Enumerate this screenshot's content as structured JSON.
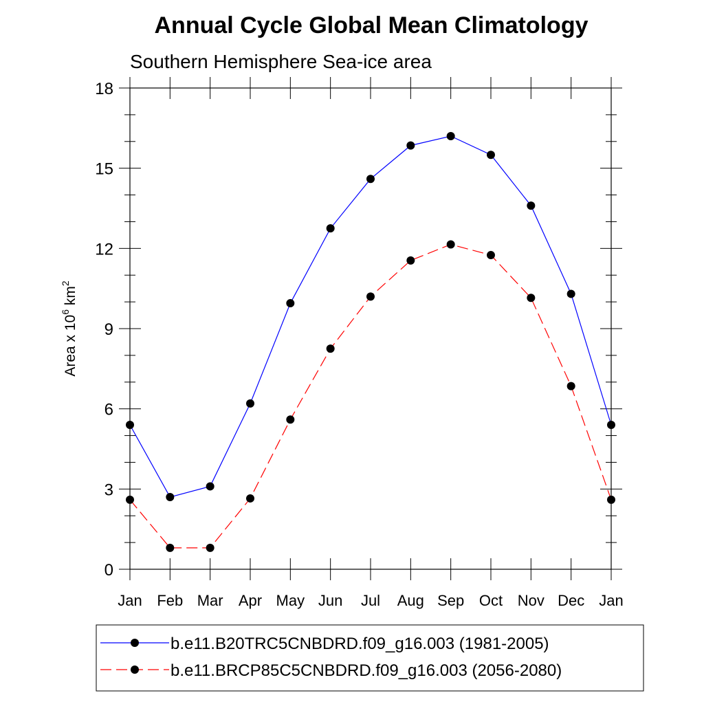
{
  "chart_data": {
    "type": "line",
    "title": "Annual Cycle Global Mean Climatology",
    "subtitle": "Southern Hemisphere Sea-ice area",
    "ylabel": {
      "base": "Area x 10",
      "exp": "6",
      "unit": " km",
      "unit_exp": "2"
    },
    "categories": [
      "Jan",
      "Feb",
      "Mar",
      "Apr",
      "May",
      "Jun",
      "Jul",
      "Aug",
      "Sep",
      "Oct",
      "Nov",
      "Dec",
      "Jan"
    ],
    "ylim": [
      0,
      18
    ],
    "yticks": [
      "0",
      "3",
      "6",
      "9",
      "12",
      "15",
      "18"
    ],
    "grid": false,
    "legend_position": "bottom",
    "series": [
      {
        "name": "b.e11.B20TRC5CNBDRD.f09_g16.003 (1981-2005)",
        "color": "#0000ff",
        "dash": "solid",
        "values": [
          5.4,
          2.7,
          3.1,
          6.2,
          9.95,
          12.75,
          14.6,
          15.85,
          16.2,
          15.5,
          13.6,
          10.3,
          5.4
        ]
      },
      {
        "name": "b.e11.BRCP85C5CNBDRD.f09_g16.003 (2056-2080)",
        "color": "#ff0000",
        "dash": "dashed",
        "values": [
          2.6,
          0.8,
          0.8,
          2.65,
          5.6,
          8.25,
          10.2,
          11.55,
          12.15,
          11.75,
          10.15,
          6.85,
          2.6
        ]
      }
    ]
  }
}
